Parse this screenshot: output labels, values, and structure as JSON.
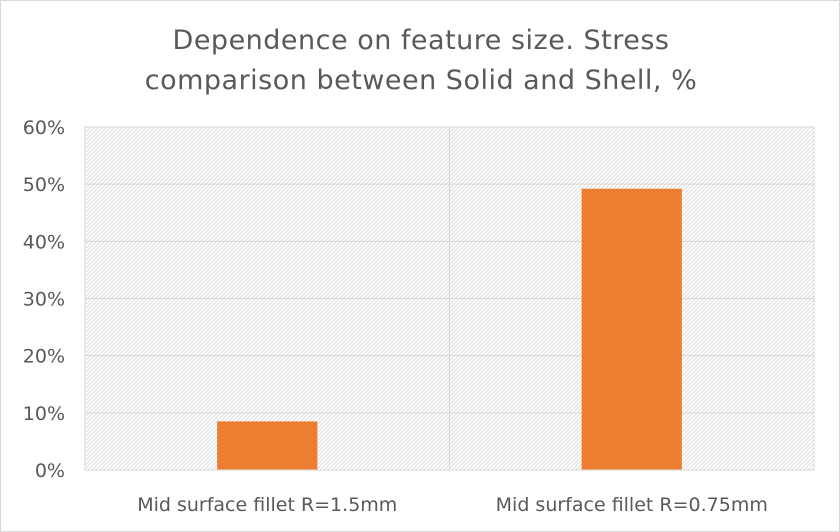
{
  "chart_data": {
    "type": "bar",
    "title_lines": [
      "Dependence on feature size. Stress",
      "comparison between Solid and Shell, %"
    ],
    "categories": [
      "Mid surface fillet R=1.5mm",
      "Mid surface fillet R=0.75mm"
    ],
    "series": [
      {
        "values": [
          0.085,
          0.492
        ],
        "color": "#ed7d31"
      }
    ],
    "y_tick_labels": [
      "0%",
      "10%",
      "20%",
      "30%",
      "40%",
      "50%",
      "60%"
    ],
    "ylim": [
      0,
      0.6
    ],
    "y_format": "percent",
    "grid": true,
    "legend": "none",
    "xlabel": "",
    "ylabel": ""
  }
}
